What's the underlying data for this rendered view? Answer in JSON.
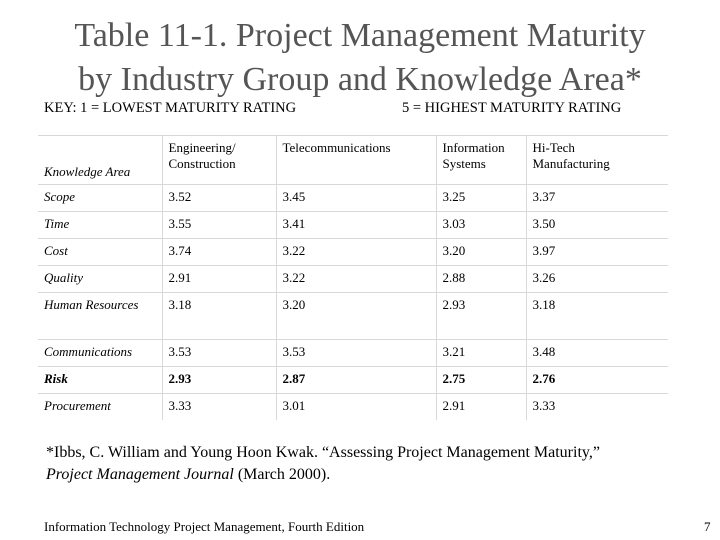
{
  "header": {
    "title_lines": [
      "Table 11-1. Project Management Maturity",
      "by Industry Group and Knowledge Area*"
    ],
    "key_left": "KEY: 1 = LOWEST MATURITY RATING",
    "key_right": "5 = HIGHEST MATURITY RATING"
  },
  "table": {
    "columns": [
      [
        "Knowledge Area"
      ],
      [
        "Engineering/",
        "Construction"
      ],
      [
        "Telecommunications"
      ],
      [
        "Information",
        "Systems"
      ],
      [
        "Hi-Tech",
        "Manufacturing"
      ]
    ],
    "rows": [
      [
        "Scope",
        "3.52",
        "3.45",
        "3.25",
        "3.37"
      ],
      [
        "Time",
        "3.55",
        "3.41",
        "3.03",
        "3.50"
      ],
      [
        "Cost",
        "3.74",
        "3.22",
        "3.20",
        "3.97"
      ],
      [
        "Quality",
        "2.91",
        "3.22",
        "2.88",
        "3.26"
      ],
      [
        "Human Resources",
        "3.18",
        "3.20",
        "2.93",
        "3.18"
      ],
      [
        "Communications",
        "3.53",
        "3.53",
        "3.21",
        "3.48"
      ],
      [
        "Risk",
        "2.93",
        "2.87",
        "2.75",
        "2.76"
      ],
      [
        "Procurement",
        "3.33",
        "3.01",
        "2.91",
        "3.33"
      ]
    ]
  },
  "footnote": {
    "line1": "*Ibbs, C. William and Young Hoon Kwak. “Assessing Project Management Maturity,”",
    "journal": "Project Management Journal",
    "date": "(March 2000)."
  },
  "footer": {
    "left": "Information Technology Project Management, Fourth Edition",
    "page": "7"
  }
}
